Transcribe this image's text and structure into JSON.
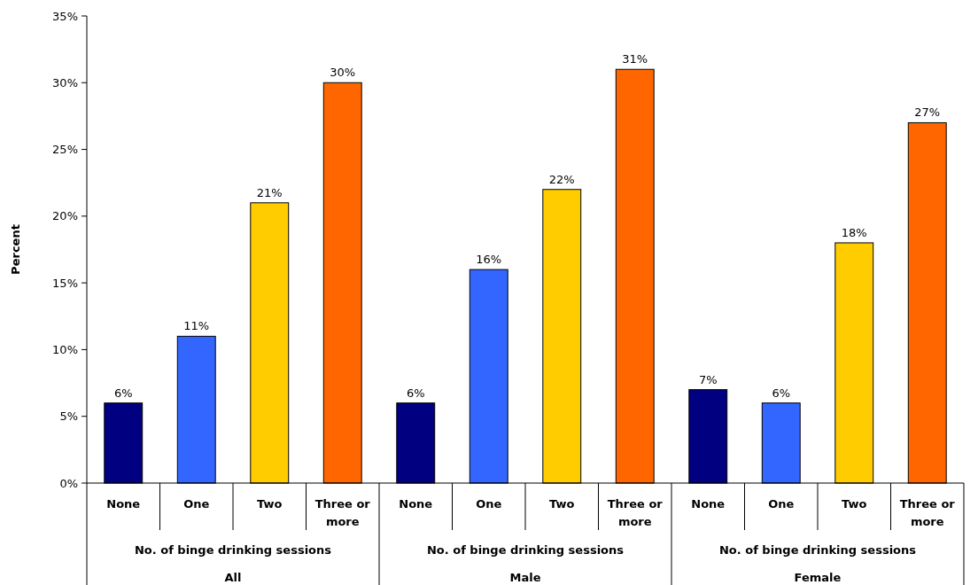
{
  "chart_data": {
    "type": "bar",
    "ylabel": "Percent",
    "xlabel": "No. of binge drinking sessions",
    "categories": [
      "All",
      "Male",
      "Female"
    ],
    "series": [
      {
        "name": "None",
        "color": "#000080",
        "values": [
          6,
          6,
          7
        ],
        "value_labels": [
          "6%",
          "6%",
          "7%"
        ]
      },
      {
        "name": "One",
        "color": "#3366ff",
        "values": [
          11,
          16,
          6
        ],
        "value_labels": [
          "11%",
          "16%",
          "6%"
        ]
      },
      {
        "name": "Two",
        "color": "#ffcc00",
        "values": [
          21,
          22,
          18
        ],
        "value_labels": [
          "21%",
          "22%",
          "18%"
        ]
      },
      {
        "name": "Three or more",
        "color": "#ff6600",
        "values": [
          30,
          31,
          27
        ],
        "value_labels": [
          "30%",
          "31%",
          "27%"
        ]
      }
    ],
    "ylim": [
      0,
      35
    ],
    "yticks": [
      {
        "value": 0,
        "label": "0%"
      },
      {
        "value": 5,
        "label": "5%"
      },
      {
        "value": 10,
        "label": "10%"
      },
      {
        "value": 15,
        "label": "15%"
      },
      {
        "value": 20,
        "label": "20%"
      },
      {
        "value": 25,
        "label": "25%"
      },
      {
        "value": 30,
        "label": "30%"
      },
      {
        "value": 35,
        "label": "35%"
      }
    ],
    "grid": false
  }
}
